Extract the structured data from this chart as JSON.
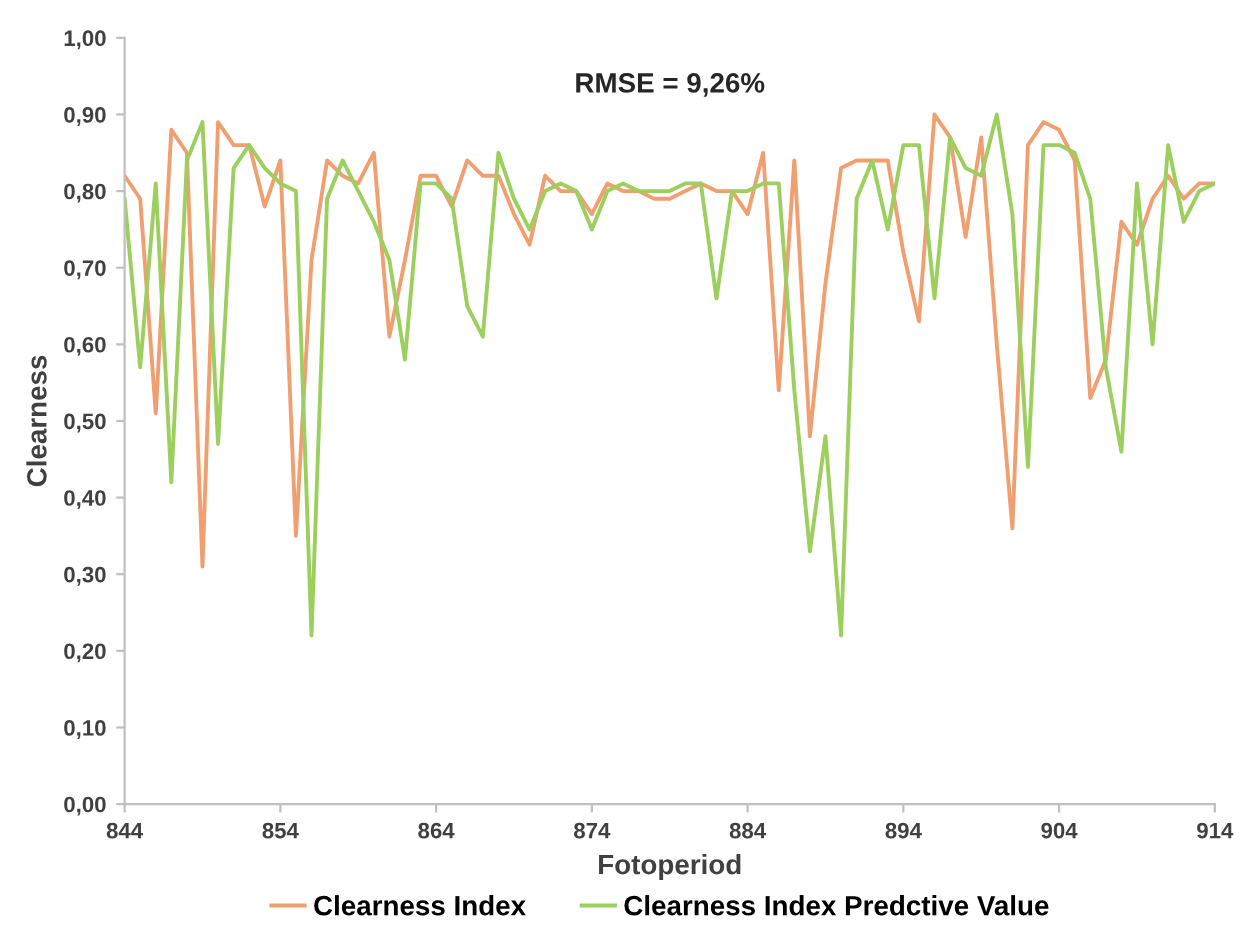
{
  "chart_data": {
    "type": "line",
    "xlabel": "Fotoperiod",
    "ylabel": "Clearness",
    "annotations": [
      "RMSE = 9,26%"
    ],
    "x": [
      844,
      845,
      846,
      847,
      848,
      849,
      850,
      851,
      852,
      853,
      854,
      855,
      856,
      857,
      858,
      859,
      860,
      861,
      862,
      863,
      864,
      865,
      866,
      867,
      868,
      869,
      870,
      871,
      872,
      873,
      874,
      875,
      876,
      877,
      878,
      879,
      880,
      881,
      882,
      883,
      884,
      885,
      886,
      887,
      888,
      889,
      890,
      891,
      892,
      893,
      894,
      895,
      896,
      897,
      898,
      899,
      900,
      901,
      902,
      903,
      904,
      905,
      906,
      907,
      908,
      909,
      910,
      911,
      912,
      913,
      914
    ],
    "series": [
      {
        "name": "Clearness Index",
        "color": "#f0a070",
        "values": [
          0.82,
          0.79,
          0.51,
          0.88,
          0.85,
          0.31,
          0.89,
          0.86,
          0.86,
          0.78,
          0.84,
          0.35,
          0.71,
          0.84,
          0.82,
          0.81,
          0.85,
          0.61,
          0.71,
          0.82,
          0.82,
          0.78,
          0.84,
          0.82,
          0.82,
          0.77,
          0.73,
          0.82,
          0.8,
          0.8,
          0.77,
          0.81,
          0.8,
          0.8,
          0.79,
          0.79,
          0.8,
          0.81,
          0.8,
          0.8,
          0.77,
          0.85,
          0.54,
          0.84,
          0.48,
          0.68,
          0.83,
          0.84,
          0.84,
          0.84,
          0.72,
          0.63,
          0.9,
          0.87,
          0.74,
          0.87,
          0.6,
          0.36,
          0.86,
          0.89,
          0.88,
          0.84,
          0.53,
          0.58,
          0.76,
          0.73,
          0.79,
          0.82,
          0.79,
          0.81,
          0.81
        ]
      },
      {
        "name": "Clearness Index Predctive Value",
        "color": "#9ccf5e",
        "values": [
          0.79,
          0.57,
          0.81,
          0.42,
          0.84,
          0.89,
          0.47,
          0.83,
          0.86,
          0.83,
          0.81,
          0.8,
          0.22,
          0.79,
          0.84,
          0.8,
          0.76,
          0.71,
          0.58,
          0.81,
          0.81,
          0.79,
          0.65,
          0.61,
          0.85,
          0.79,
          0.75,
          0.8,
          0.81,
          0.8,
          0.75,
          0.8,
          0.81,
          0.8,
          0.8,
          0.8,
          0.81,
          0.81,
          0.66,
          0.8,
          0.8,
          0.81,
          0.81,
          0.54,
          0.33,
          0.48,
          0.22,
          0.79,
          0.84,
          0.75,
          0.86,
          0.86,
          0.66,
          0.87,
          0.83,
          0.82,
          0.9,
          0.77,
          0.44,
          0.86,
          0.86,
          0.85,
          0.79,
          0.57,
          0.46,
          0.81,
          0.6,
          0.86,
          0.76,
          0.8,
          0.81
        ]
      }
    ],
    "xlim": [
      844,
      914
    ],
    "xticks": [
      844,
      854,
      864,
      874,
      884,
      894,
      904,
      914
    ],
    "ylim": [
      0,
      1
    ],
    "yticks": [
      {
        "value": 0,
        "label": "0,00"
      },
      {
        "value": 0.1,
        "label": "0,10"
      },
      {
        "value": 0.2,
        "label": "0,20"
      },
      {
        "value": 0.3,
        "label": "0,30"
      },
      {
        "value": 0.4,
        "label": "0,40"
      },
      {
        "value": 0.5,
        "label": "0,50"
      },
      {
        "value": 0.6,
        "label": "0,60"
      },
      {
        "value": 0.7,
        "label": "0,70"
      },
      {
        "value": 0.8,
        "label": "0,80"
      },
      {
        "value": 0.9,
        "label": "0,90"
      },
      {
        "value": 1.0,
        "label": "1,00"
      }
    ],
    "grid": false,
    "legend": "bottom",
    "line_style": "solid"
  }
}
